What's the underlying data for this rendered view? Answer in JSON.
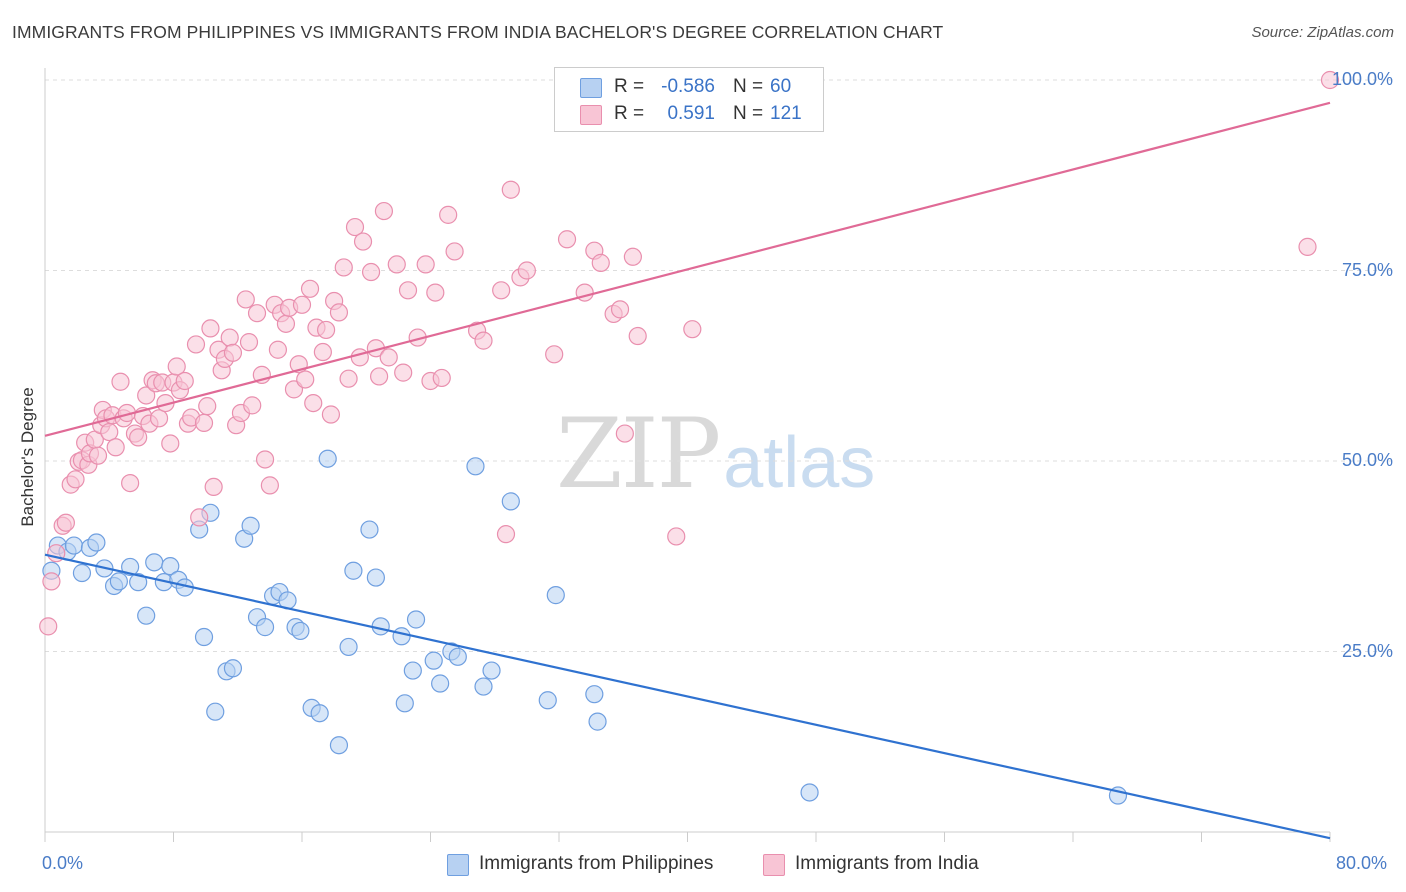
{
  "title": "IMMIGRANTS FROM PHILIPPINES VS IMMIGRANTS FROM INDIA BACHELOR'S DEGREE CORRELATION CHART",
  "source": "Source: ZipAtlas.com",
  "watermark": {
    "zip": "ZIP",
    "atlas": "atlas"
  },
  "colors": {
    "blue_fill": "#b7d1f2",
    "blue_stroke": "#6f9fe0",
    "blue_line": "#2f72d0",
    "pink_fill": "#f8c5d5",
    "pink_stroke": "#e98fae",
    "pink_line": "#e06a96",
    "tick_text": "#4a7cc7",
    "grid": "#dddddd"
  },
  "stats": [
    {
      "r_label": "R =",
      "r_value": "-0.586",
      "n_label": "N =",
      "n_value": "60",
      "color": "blue"
    },
    {
      "r_label": "R =",
      "r_value": "0.591",
      "n_label": "N =",
      "n_value": "121",
      "color": "pink"
    }
  ],
  "chart_data": {
    "type": "scatter",
    "title": "IMMIGRANTS FROM PHILIPPINES VS IMMIGRANTS FROM INDIA BACHELOR'S DEGREE CORRELATION CHART",
    "xlabel": "",
    "ylabel": "Bachelor's Degree",
    "xlim": [
      0,
      80
    ],
    "ylim": [
      0,
      100
    ],
    "x_tick_labels": [
      "0.0%",
      "80.0%"
    ],
    "y_ticks": [
      25,
      50,
      75,
      100
    ],
    "y_tick_labels": [
      "25.0%",
      "50.0%",
      "75.0%",
      "100.0%"
    ],
    "grid": true,
    "legend_placement": "bottom-center",
    "series": [
      {
        "name": "Immigrants from Philippines",
        "color": "blue",
        "trend": {
          "x": [
            0,
            80
          ],
          "y": [
            37.7,
            0.5
          ]
        },
        "points": [
          [
            0.4,
            35.6
          ],
          [
            0.8,
            38.9
          ],
          [
            1.4,
            38.1
          ],
          [
            1.8,
            38.9
          ],
          [
            2.3,
            35.3
          ],
          [
            2.8,
            38.6
          ],
          [
            3.2,
            39.3
          ],
          [
            3.7,
            35.9
          ],
          [
            4.3,
            33.6
          ],
          [
            4.6,
            34.2
          ],
          [
            5.3,
            36.1
          ],
          [
            5.8,
            34.1
          ],
          [
            6.3,
            29.7
          ],
          [
            6.8,
            36.7
          ],
          [
            7.4,
            34.1
          ],
          [
            7.8,
            36.2
          ],
          [
            8.3,
            34.4
          ],
          [
            8.7,
            33.4
          ],
          [
            9.6,
            41.0
          ],
          [
            9.9,
            26.9
          ],
          [
            10.3,
            43.2
          ],
          [
            10.6,
            17.1
          ],
          [
            11.3,
            22.4
          ],
          [
            11.7,
            22.8
          ],
          [
            12.4,
            39.8
          ],
          [
            12.8,
            41.5
          ],
          [
            13.2,
            29.5
          ],
          [
            13.7,
            28.2
          ],
          [
            14.2,
            32.3
          ],
          [
            14.6,
            32.8
          ],
          [
            15.1,
            31.7
          ],
          [
            15.6,
            28.2
          ],
          [
            15.9,
            27.7
          ],
          [
            16.6,
            17.6
          ],
          [
            17.1,
            16.9
          ],
          [
            17.6,
            50.3
          ],
          [
            18.3,
            12.7
          ],
          [
            18.9,
            25.6
          ],
          [
            19.2,
            35.6
          ],
          [
            20.2,
            41.0
          ],
          [
            20.6,
            34.7
          ],
          [
            20.9,
            28.3
          ],
          [
            22.2,
            27.0
          ],
          [
            22.4,
            18.2
          ],
          [
            22.9,
            22.5
          ],
          [
            23.1,
            29.2
          ],
          [
            24.2,
            23.8
          ],
          [
            24.6,
            20.8
          ],
          [
            25.3,
            25.0
          ],
          [
            25.7,
            24.3
          ],
          [
            26.8,
            49.3
          ],
          [
            27.3,
            20.4
          ],
          [
            27.8,
            22.5
          ],
          [
            29.0,
            44.7
          ],
          [
            31.3,
            18.6
          ],
          [
            31.8,
            32.4
          ],
          [
            34.2,
            19.4
          ],
          [
            34.4,
            15.8
          ],
          [
            47.6,
            6.5
          ],
          [
            66.8,
            6.1
          ]
        ]
      },
      {
        "name": "Immigrants from India",
        "color": "pink",
        "trend": {
          "x": [
            0,
            80
          ],
          "y": [
            53.3,
            97.0
          ]
        },
        "points": [
          [
            0.2,
            28.3
          ],
          [
            0.4,
            34.2
          ],
          [
            0.7,
            37.9
          ],
          [
            1.1,
            41.5
          ],
          [
            1.3,
            41.9
          ],
          [
            1.6,
            46.9
          ],
          [
            1.9,
            47.6
          ],
          [
            2.1,
            49.9
          ],
          [
            2.3,
            50.1
          ],
          [
            2.5,
            52.4
          ],
          [
            2.7,
            49.5
          ],
          [
            2.8,
            51.0
          ],
          [
            3.1,
            52.8
          ],
          [
            3.3,
            50.7
          ],
          [
            3.5,
            54.7
          ],
          [
            3.6,
            56.7
          ],
          [
            3.8,
            55.6
          ],
          [
            4.0,
            53.8
          ],
          [
            4.2,
            56.0
          ],
          [
            4.4,
            51.8
          ],
          [
            4.7,
            60.4
          ],
          [
            4.9,
            55.6
          ],
          [
            5.1,
            56.3
          ],
          [
            5.3,
            47.1
          ],
          [
            5.6,
            53.6
          ],
          [
            5.8,
            53.1
          ],
          [
            6.1,
            55.9
          ],
          [
            6.3,
            58.6
          ],
          [
            6.5,
            54.9
          ],
          [
            6.7,
            60.6
          ],
          [
            6.9,
            60.2
          ],
          [
            7.1,
            55.6
          ],
          [
            7.3,
            60.3
          ],
          [
            7.5,
            57.6
          ],
          [
            7.8,
            52.3
          ],
          [
            8.0,
            60.3
          ],
          [
            8.2,
            62.4
          ],
          [
            8.4,
            59.3
          ],
          [
            8.7,
            60.5
          ],
          [
            8.9,
            54.9
          ],
          [
            9.1,
            55.7
          ],
          [
            9.4,
            65.3
          ],
          [
            9.6,
            42.6
          ],
          [
            9.9,
            55.0
          ],
          [
            10.1,
            57.2
          ],
          [
            10.3,
            67.4
          ],
          [
            10.5,
            46.6
          ],
          [
            10.8,
            64.6
          ],
          [
            11.0,
            61.9
          ],
          [
            11.2,
            63.4
          ],
          [
            11.5,
            66.2
          ],
          [
            11.7,
            64.2
          ],
          [
            11.9,
            54.7
          ],
          [
            12.2,
            56.3
          ],
          [
            12.5,
            71.2
          ],
          [
            12.7,
            65.6
          ],
          [
            12.9,
            57.3
          ],
          [
            13.2,
            69.4
          ],
          [
            13.5,
            61.3
          ],
          [
            13.7,
            50.2
          ],
          [
            14.0,
            46.8
          ],
          [
            14.3,
            70.5
          ],
          [
            14.5,
            64.6
          ],
          [
            14.7,
            69.4
          ],
          [
            15.0,
            68.0
          ],
          [
            15.2,
            70.1
          ],
          [
            15.5,
            59.4
          ],
          [
            15.8,
            62.7
          ],
          [
            16.0,
            70.5
          ],
          [
            16.2,
            60.7
          ],
          [
            16.5,
            72.6
          ],
          [
            16.7,
            57.6
          ],
          [
            16.9,
            67.5
          ],
          [
            17.3,
            64.3
          ],
          [
            17.5,
            67.2
          ],
          [
            17.8,
            56.1
          ],
          [
            18.0,
            71.0
          ],
          [
            18.3,
            69.5
          ],
          [
            18.6,
            75.4
          ],
          [
            18.9,
            60.8
          ],
          [
            19.3,
            80.7
          ],
          [
            19.6,
            63.6
          ],
          [
            19.8,
            78.8
          ],
          [
            20.3,
            74.8
          ],
          [
            20.6,
            64.8
          ],
          [
            20.8,
            61.1
          ],
          [
            21.1,
            82.8
          ],
          [
            21.4,
            63.6
          ],
          [
            21.9,
            75.8
          ],
          [
            22.3,
            61.6
          ],
          [
            22.6,
            72.4
          ],
          [
            23.2,
            66.2
          ],
          [
            23.7,
            75.8
          ],
          [
            24.0,
            60.5
          ],
          [
            24.3,
            72.1
          ],
          [
            24.7,
            60.9
          ],
          [
            25.1,
            82.3
          ],
          [
            25.5,
            77.5
          ],
          [
            26.9,
            67.1
          ],
          [
            27.3,
            65.8
          ],
          [
            28.4,
            72.4
          ],
          [
            28.7,
            40.4
          ],
          [
            29.0,
            85.6
          ],
          [
            29.6,
            74.1
          ],
          [
            30.0,
            75.0
          ],
          [
            31.7,
            64.0
          ],
          [
            32.5,
            79.1
          ],
          [
            33.6,
            72.1
          ],
          [
            34.2,
            77.6
          ],
          [
            34.6,
            76.0
          ],
          [
            35.4,
            69.3
          ],
          [
            35.8,
            69.9
          ],
          [
            36.1,
            53.6
          ],
          [
            36.6,
            76.8
          ],
          [
            36.9,
            66.4
          ],
          [
            39.3,
            40.1
          ],
          [
            40.3,
            67.3
          ],
          [
            78.6,
            78.1
          ],
          [
            80.0,
            100.0
          ]
        ]
      }
    ]
  },
  "legend": [
    {
      "label": "Immigrants from Philippines",
      "color": "blue"
    },
    {
      "label": "Immigrants from India",
      "color": "pink"
    }
  ]
}
